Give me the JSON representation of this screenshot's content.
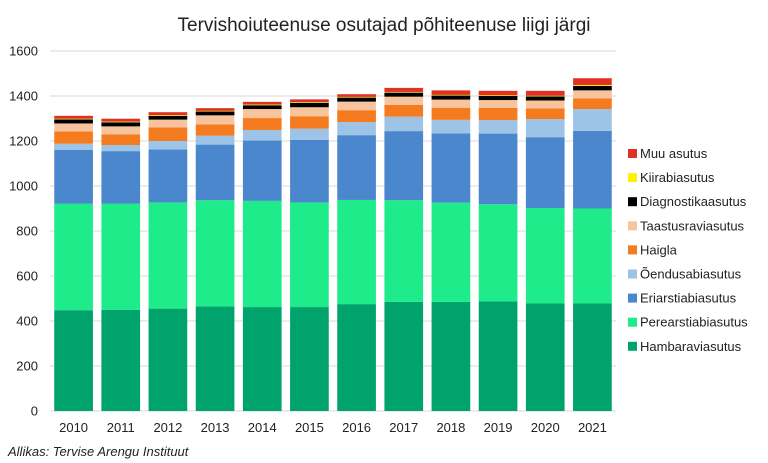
{
  "chart_data": {
    "type": "bar",
    "stacked": true,
    "title": "Tervishoiuteenuse osutajad põhiteenuse liigi järgi",
    "source": "Allikas: Tervise Arengu Instituut",
    "xlabel": "",
    "ylabel": "",
    "ylim": [
      0,
      1600
    ],
    "yticks": [
      0,
      200,
      400,
      600,
      800,
      1000,
      1200,
      1400,
      1600
    ],
    "grid": true,
    "legend_position": "right",
    "categories": [
      "2010",
      "2011",
      "2012",
      "2013",
      "2014",
      "2015",
      "2016",
      "2017",
      "2018",
      "2019",
      "2020",
      "2021"
    ],
    "series": [
      {
        "name": "Hambaraviasutus",
        "color": "#00A36C",
        "values": [
          448,
          450,
          455,
          465,
          462,
          462,
          475,
          485,
          485,
          487,
          478,
          478
        ]
      },
      {
        "name": "Perearstiabiasutus",
        "color": "#1EEB8A",
        "values": [
          474,
          472,
          472,
          472,
          472,
          465,
          463,
          452,
          441,
          432,
          424,
          422
        ]
      },
      {
        "name": "Eriarstiabiasutus",
        "color": "#4A87CC",
        "values": [
          239,
          233,
          235,
          247,
          268,
          278,
          288,
          307,
          308,
          314,
          315,
          345
        ]
      },
      {
        "name": "Õendusabiasutus",
        "color": "#9DC3E6",
        "values": [
          27,
          27,
          38,
          40,
          47,
          50,
          58,
          64,
          60,
          60,
          80,
          97
        ]
      },
      {
        "name": "Haigla",
        "color": "#F47B20",
        "values": [
          55,
          48,
          60,
          50,
          53,
          55,
          53,
          53,
          54,
          54,
          48,
          48
        ]
      },
      {
        "name": "Taastusraviasutus",
        "color": "#F8C49E",
        "values": [
          35,
          35,
          35,
          40,
          40,
          40,
          38,
          36,
          36,
          35,
          35,
          35
        ]
      },
      {
        "name": "Diagnostikaasutus",
        "color": "#000000",
        "values": [
          18,
          18,
          17,
          17,
          17,
          20,
          18,
          18,
          18,
          18,
          18,
          20
        ]
      },
      {
        "name": "Kiirabiasutus",
        "color": "#FFF200",
        "values": [
          3,
          3,
          3,
          3,
          3,
          3,
          3,
          3,
          3,
          3,
          3,
          4
        ]
      },
      {
        "name": "Muu asutus",
        "color": "#E03127",
        "values": [
          13,
          13,
          13,
          12,
          12,
          12,
          12,
          18,
          20,
          20,
          22,
          30
        ]
      }
    ]
  }
}
